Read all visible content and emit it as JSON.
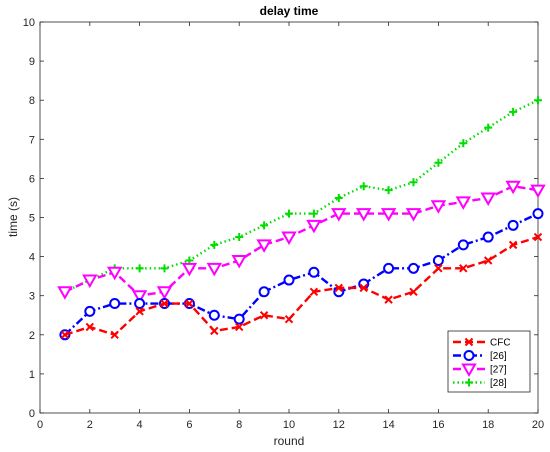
{
  "chart_data": {
    "type": "line",
    "title": "delay time",
    "xlabel": "round",
    "ylabel": "time (s)",
    "xlim": [
      0,
      20
    ],
    "ylim": [
      0,
      10
    ],
    "xticks": [
      0,
      2,
      4,
      6,
      8,
      10,
      12,
      14,
      16,
      18,
      20
    ],
    "yticks": [
      0,
      1,
      2,
      3,
      4,
      5,
      6,
      7,
      8,
      9,
      10
    ],
    "grid": false,
    "legend_position": "bottom-right",
    "x": [
      1,
      2,
      3,
      4,
      5,
      6,
      7,
      8,
      9,
      10,
      11,
      12,
      13,
      14,
      15,
      16,
      17,
      18,
      19,
      20
    ],
    "series": [
      {
        "name": "CFC",
        "color": "#ff0000",
        "line_style": "dashed",
        "marker": "x",
        "values": [
          2.0,
          2.2,
          2.0,
          2.6,
          2.8,
          2.8,
          2.1,
          2.2,
          2.5,
          2.4,
          3.1,
          3.2,
          3.2,
          2.9,
          3.1,
          3.7,
          3.7,
          3.9,
          4.3,
          4.5
        ]
      },
      {
        "name": "[26]",
        "color": "#0000ff",
        "line_style": "dash-dot",
        "marker": "circle",
        "values": [
          2.0,
          2.6,
          2.8,
          2.8,
          2.8,
          2.8,
          2.5,
          2.4,
          3.1,
          3.4,
          3.6,
          3.1,
          3.3,
          3.7,
          3.7,
          3.9,
          4.3,
          4.5,
          4.8,
          5.1
        ]
      },
      {
        "name": "[27]",
        "color": "#ff00ff",
        "line_style": "dashed",
        "marker": "triangle-down",
        "values": [
          3.1,
          3.4,
          3.6,
          3.0,
          3.1,
          3.7,
          3.7,
          3.9,
          4.3,
          4.5,
          4.8,
          5.1,
          5.1,
          5.1,
          5.1,
          5.3,
          5.4,
          5.5,
          5.8,
          5.7
        ]
      },
      {
        "name": "[28]",
        "color": "#00dd00",
        "line_style": "dotted",
        "marker": "plus",
        "values": [
          3.1,
          3.4,
          3.7,
          3.7,
          3.7,
          3.9,
          4.3,
          4.5,
          4.8,
          5.1,
          5.1,
          5.5,
          5.8,
          5.7,
          5.9,
          6.4,
          6.9,
          7.3,
          7.7,
          8.0
        ]
      }
    ]
  }
}
